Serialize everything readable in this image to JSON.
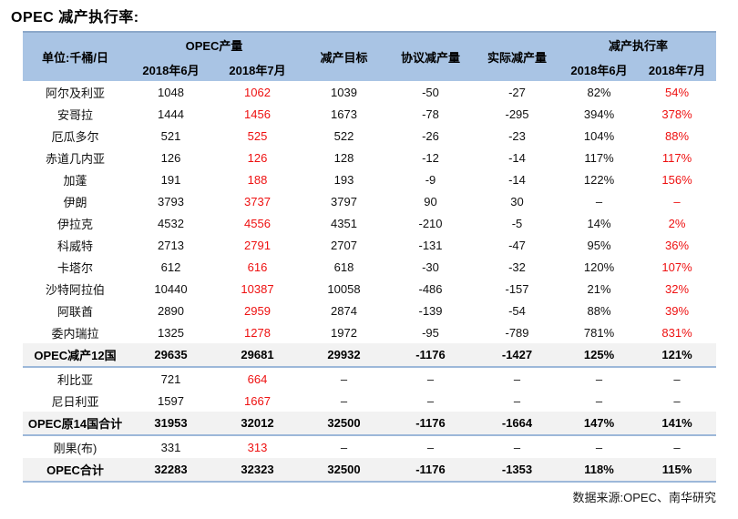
{
  "page_title": "OPEC 减产执行率:",
  "footer": {
    "source": "数据来源:OPEC、南华研究"
  },
  "colors": {
    "header_bg": "#A9C4E4",
    "summary_row_bg": "#F2F2F2",
    "divider_blue": "#9DB8D9",
    "negative_red": "#EE1111",
    "text": "#000000"
  },
  "chart_data": {
    "type": "table",
    "title": "OPEC 减产执行率:",
    "unit_header": "单位:千桶/日",
    "header": {
      "group_opec_production": "OPEC产量",
      "col_target": "减产目标",
      "col_agreed_cut": "协议减产量",
      "col_actual_cut": "实际减产量",
      "group_execution_rate": "减产执行率",
      "sub_prod_jun": "2018年6月",
      "sub_prod_jul": "2018年7月",
      "sub_rate_jun": "2018年6月",
      "sub_rate_jul": "2018年7月"
    },
    "columns": [
      "单位:千桶/日",
      "OPEC产量 2018年6月",
      "OPEC产量 2018年7月",
      "减产目标",
      "协议减产量",
      "实际减产量",
      "减产执行率 2018年6月",
      "减产执行率 2018年7月"
    ],
    "rows": [
      {
        "name": "阿尔及利亚",
        "summary": false,
        "values": [
          "1048",
          "1062",
          "1039",
          "-50",
          "-27",
          "82%",
          "54%"
        ],
        "red_cols": [
          1,
          6
        ]
      },
      {
        "name": "安哥拉",
        "summary": false,
        "values": [
          "1444",
          "1456",
          "1673",
          "-78",
          "-295",
          "394%",
          "378%"
        ],
        "red_cols": [
          1,
          6
        ]
      },
      {
        "name": "厄瓜多尔",
        "summary": false,
        "values": [
          "521",
          "525",
          "522",
          "-26",
          "-23",
          "104%",
          "88%"
        ],
        "red_cols": [
          1,
          6
        ]
      },
      {
        "name": "赤道几内亚",
        "summary": false,
        "values": [
          "126",
          "126",
          "128",
          "-12",
          "-14",
          "117%",
          "117%"
        ],
        "red_cols": [
          1,
          6
        ]
      },
      {
        "name": "加蓬",
        "summary": false,
        "values": [
          "191",
          "188",
          "193",
          "-9",
          "-14",
          "122%",
          "156%"
        ],
        "red_cols": [
          1,
          6
        ]
      },
      {
        "name": "伊朗",
        "summary": false,
        "values": [
          "3793",
          "3737",
          "3797",
          "90",
          "30",
          "–",
          "–"
        ],
        "red_cols": [
          1,
          6
        ]
      },
      {
        "name": "伊拉克",
        "summary": false,
        "values": [
          "4532",
          "4556",
          "4351",
          "-210",
          "-5",
          "14%",
          "2%"
        ],
        "red_cols": [
          1,
          6
        ]
      },
      {
        "name": "科威特",
        "summary": false,
        "values": [
          "2713",
          "2791",
          "2707",
          "-131",
          "-47",
          "95%",
          "36%"
        ],
        "red_cols": [
          1,
          6
        ]
      },
      {
        "name": "卡塔尔",
        "summary": false,
        "values": [
          "612",
          "616",
          "618",
          "-30",
          "-32",
          "120%",
          "107%"
        ],
        "red_cols": [
          1,
          6
        ]
      },
      {
        "name": "沙特阿拉伯",
        "summary": false,
        "values": [
          "10440",
          "10387",
          "10058",
          "-486",
          "-157",
          "21%",
          "32%"
        ],
        "red_cols": [
          1,
          6
        ]
      },
      {
        "name": "阿联酋",
        "summary": false,
        "values": [
          "2890",
          "2959",
          "2874",
          "-139",
          "-54",
          "88%",
          "39%"
        ],
        "red_cols": [
          1,
          6
        ]
      },
      {
        "name": "委内瑞拉",
        "summary": false,
        "values": [
          "1325",
          "1278",
          "1972",
          "-95",
          "-789",
          "781%",
          "831%"
        ],
        "red_cols": [
          1,
          6
        ]
      },
      {
        "name": "OPEC减产12国",
        "summary": true,
        "values": [
          "29635",
          "29681",
          "29932",
          "-1176",
          "-1427",
          "125%",
          "121%"
        ],
        "red_cols": [
          1,
          6
        ]
      },
      {
        "name": "利比亚",
        "summary": false,
        "values": [
          "721",
          "664",
          "–",
          "–",
          "–",
          "–",
          "–"
        ],
        "red_cols": [
          1
        ]
      },
      {
        "name": "尼日利亚",
        "summary": false,
        "values": [
          "1597",
          "1667",
          "–",
          "–",
          "–",
          "–",
          "–"
        ],
        "red_cols": [
          1
        ]
      },
      {
        "name": "OPEC原14国合计",
        "summary": true,
        "values": [
          "31953",
          "32012",
          "32500",
          "-1176",
          "-1664",
          "147%",
          "141%"
        ],
        "red_cols": [
          6
        ]
      },
      {
        "name": "刚果(布)",
        "summary": false,
        "values": [
          "331",
          "313",
          "–",
          "–",
          "–",
          "–",
          "–"
        ],
        "red_cols": [
          1
        ]
      },
      {
        "name": "OPEC合计",
        "summary": true,
        "values": [
          "32283",
          "32323",
          "32500",
          "-1176",
          "-1353",
          "118%",
          "115%"
        ],
        "red_cols": [
          1,
          6
        ]
      }
    ],
    "source": "数据来源:OPEC、南华研究"
  }
}
